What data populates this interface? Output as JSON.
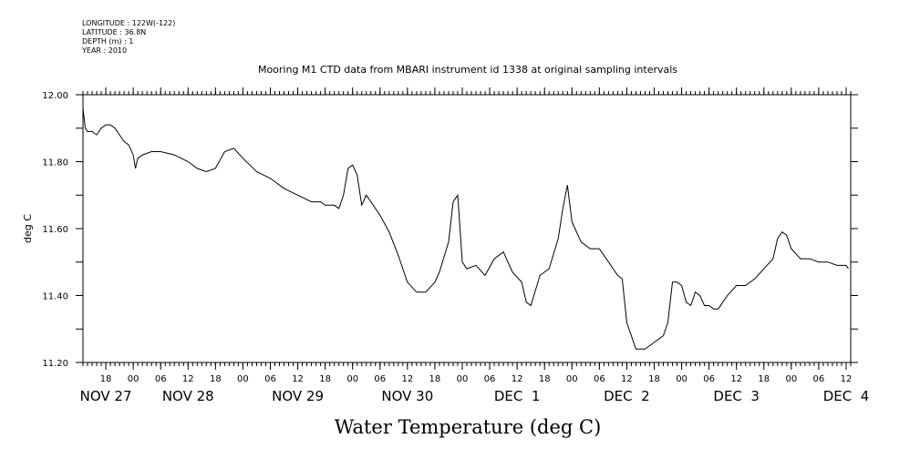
{
  "header": {
    "longitude": "LONGITUDE : 122W(-122)",
    "latitude": "LATITUDE : 36.8N",
    "depth": "DEPTH (m) : 1",
    "year": "YEAR : 2010"
  },
  "chart_data": {
    "type": "line",
    "title": "Mooring M1 CTD data from MBARI instrument id 1338 at original sampling intervals",
    "xlabel": "Water Temperature (deg C)",
    "ylabel": "deg C",
    "ylim": [
      11.2,
      12.0
    ],
    "xlim": [
      "2010-11-27 13:00",
      "2010-12-04 13:00"
    ],
    "y_ticks": [
      "12.00",
      "11.80",
      "11.60",
      "11.40",
      "11.20"
    ],
    "hour_ticks": [
      {
        "x": "2010-11-27 18:00",
        "label": "18"
      },
      {
        "x": "2010-11-28 00:00",
        "label": "00"
      },
      {
        "x": "2010-11-28 06:00",
        "label": "06"
      },
      {
        "x": "2010-11-28 12:00",
        "label": "12"
      },
      {
        "x": "2010-11-28 18:00",
        "label": "18"
      },
      {
        "x": "2010-11-29 00:00",
        "label": "00"
      },
      {
        "x": "2010-11-29 06:00",
        "label": "06"
      },
      {
        "x": "2010-11-29 12:00",
        "label": "12"
      },
      {
        "x": "2010-11-29 18:00",
        "label": "18"
      },
      {
        "x": "2010-11-30 00:00",
        "label": "00"
      },
      {
        "x": "2010-11-30 06:00",
        "label": "06"
      },
      {
        "x": "2010-11-30 12:00",
        "label": "12"
      },
      {
        "x": "2010-11-30 18:00",
        "label": "18"
      },
      {
        "x": "2010-12-01 00:00",
        "label": "00"
      },
      {
        "x": "2010-12-01 06:00",
        "label": "06"
      },
      {
        "x": "2010-12-01 12:00",
        "label": "12"
      },
      {
        "x": "2010-12-01 18:00",
        "label": "18"
      },
      {
        "x": "2010-12-02 00:00",
        "label": "00"
      },
      {
        "x": "2010-12-02 06:00",
        "label": "06"
      },
      {
        "x": "2010-12-02 12:00",
        "label": "12"
      },
      {
        "x": "2010-12-02 18:00",
        "label": "18"
      },
      {
        "x": "2010-12-03 00:00",
        "label": "00"
      },
      {
        "x": "2010-12-03 06:00",
        "label": "06"
      },
      {
        "x": "2010-12-03 12:00",
        "label": "12"
      },
      {
        "x": "2010-12-03 18:00",
        "label": "18"
      },
      {
        "x": "2010-12-04 00:00",
        "label": "00"
      },
      {
        "x": "2010-12-04 06:00",
        "label": "06"
      },
      {
        "x": "2010-12-04 12:00",
        "label": "12"
      }
    ],
    "day_labels": [
      {
        "x": "2010-11-27 18:00",
        "label": "NOV 27"
      },
      {
        "x": "2010-11-28 12:00",
        "label": "NOV 28"
      },
      {
        "x": "2010-11-29 12:00",
        "label": "NOV 29"
      },
      {
        "x": "2010-11-30 12:00",
        "label": "NOV 30"
      },
      {
        "x": "2010-12-01 12:00",
        "label": "DEC  1"
      },
      {
        "x": "2010-12-02 12:00",
        "label": "DEC  2"
      },
      {
        "x": "2010-12-03 12:00",
        "label": "DEC  3"
      },
      {
        "x": "2010-12-04 12:00",
        "label": "DEC  4"
      }
    ],
    "grid": false,
    "line_color": "#000000",
    "series": [
      {
        "x": [
          "2010-11-27 13:00",
          "2010-11-27 13:30",
          "2010-11-27 14:00",
          "2010-11-27 15:00",
          "2010-11-27 16:00",
          "2010-11-27 17:00",
          "2010-11-27 18:00",
          "2010-11-27 19:00",
          "2010-11-27 20:00",
          "2010-11-27 21:00",
          "2010-11-27 22:00",
          "2010-11-27 23:00",
          "2010-11-28 00:00",
          "2010-11-28 00:30",
          "2010-11-28 01:00",
          "2010-11-28 02:00",
          "2010-11-28 04:00",
          "2010-11-28 06:00",
          "2010-11-28 09:00",
          "2010-11-28 12:00",
          "2010-11-28 14:00",
          "2010-11-28 16:00",
          "2010-11-28 18:00",
          "2010-11-28 20:00",
          "2010-11-28 22:00",
          "2010-11-29 00:00",
          "2010-11-29 03:00",
          "2010-11-29 06:00",
          "2010-11-29 09:00",
          "2010-11-29 12:00",
          "2010-11-29 15:00",
          "2010-11-29 17:00",
          "2010-11-29 18:00",
          "2010-11-29 20:00",
          "2010-11-29 21:00",
          "2010-11-29 22:00",
          "2010-11-29 23:00",
          "2010-11-30 00:00",
          "2010-11-30 01:00",
          "2010-11-30 02:00",
          "2010-11-30 03:00",
          "2010-11-30 04:00",
          "2010-11-30 06:00",
          "2010-11-30 08:00",
          "2010-11-30 10:00",
          "2010-11-30 12:00",
          "2010-11-30 14:00",
          "2010-11-30 16:00",
          "2010-11-30 18:00",
          "2010-11-30 19:00",
          "2010-11-30 21:00",
          "2010-11-30 22:00",
          "2010-11-30 23:00",
          "2010-12-01 00:00",
          "2010-12-01 01:00",
          "2010-12-01 03:00",
          "2010-12-01 05:00",
          "2010-12-01 07:00",
          "2010-12-01 09:00",
          "2010-12-01 11:00",
          "2010-12-01 13:00",
          "2010-12-01 14:00",
          "2010-12-01 15:00",
          "2010-12-01 17:00",
          "2010-12-01 19:00",
          "2010-12-01 21:00",
          "2010-12-01 22:00",
          "2010-12-01 23:00",
          "2010-12-02 00:00",
          "2010-12-02 02:00",
          "2010-12-02 04:00",
          "2010-12-02 06:00",
          "2010-12-02 08:00",
          "2010-12-02 09:00",
          "2010-12-02 10:00",
          "2010-12-02 11:00",
          "2010-12-02 12:00",
          "2010-12-02 14:00",
          "2010-12-02 16:00",
          "2010-12-02 18:00",
          "2010-12-02 19:00",
          "2010-12-02 20:00",
          "2010-12-02 21:00",
          "2010-12-02 22:00",
          "2010-12-02 23:00",
          "2010-12-03 00:00",
          "2010-12-03 01:00",
          "2010-12-03 02:00",
          "2010-12-03 03:00",
          "2010-12-03 04:00",
          "2010-12-03 05:00",
          "2010-12-03 06:00",
          "2010-12-03 07:00",
          "2010-12-03 08:00",
          "2010-12-03 10:00",
          "2010-12-03 12:00",
          "2010-12-03 14:00",
          "2010-12-03 16:00",
          "2010-12-03 18:00",
          "2010-12-03 20:00",
          "2010-12-03 21:00",
          "2010-12-03 22:00",
          "2010-12-03 23:00",
          "2010-12-04 00:00",
          "2010-12-04 02:00",
          "2010-12-04 04:00",
          "2010-12-04 06:00",
          "2010-12-04 08:00",
          "2010-12-04 10:00",
          "2010-12-04 12:00",
          "2010-12-04 12:30"
        ],
        "values": [
          11.96,
          11.9,
          11.89,
          11.89,
          11.88,
          11.9,
          11.91,
          11.91,
          11.9,
          11.88,
          11.86,
          11.85,
          11.82,
          11.78,
          11.81,
          11.82,
          11.83,
          11.83,
          11.82,
          11.8,
          11.78,
          11.77,
          11.78,
          11.83,
          11.84,
          11.81,
          11.77,
          11.75,
          11.72,
          11.7,
          11.68,
          11.68,
          11.67,
          11.67,
          11.66,
          11.7,
          11.78,
          11.79,
          11.76,
          11.67,
          11.7,
          11.68,
          11.64,
          11.59,
          11.52,
          11.44,
          11.41,
          11.41,
          11.44,
          11.47,
          11.56,
          11.68,
          11.7,
          11.5,
          11.48,
          11.49,
          11.46,
          11.51,
          11.53,
          11.47,
          11.44,
          11.38,
          11.37,
          11.46,
          11.48,
          11.57,
          11.66,
          11.73,
          11.62,
          11.56,
          11.54,
          11.54,
          11.5,
          11.48,
          11.46,
          11.45,
          11.32,
          11.24,
          11.24,
          11.26,
          11.27,
          11.28,
          11.32,
          11.44,
          11.44,
          11.43,
          11.38,
          11.37,
          11.41,
          11.4,
          11.37,
          11.37,
          11.36,
          11.36,
          11.4,
          11.43,
          11.43,
          11.45,
          11.48,
          11.51,
          11.57,
          11.59,
          11.58,
          11.54,
          11.51,
          11.51,
          11.5,
          11.5,
          11.49,
          11.49,
          11.48
        ]
      }
    ]
  }
}
